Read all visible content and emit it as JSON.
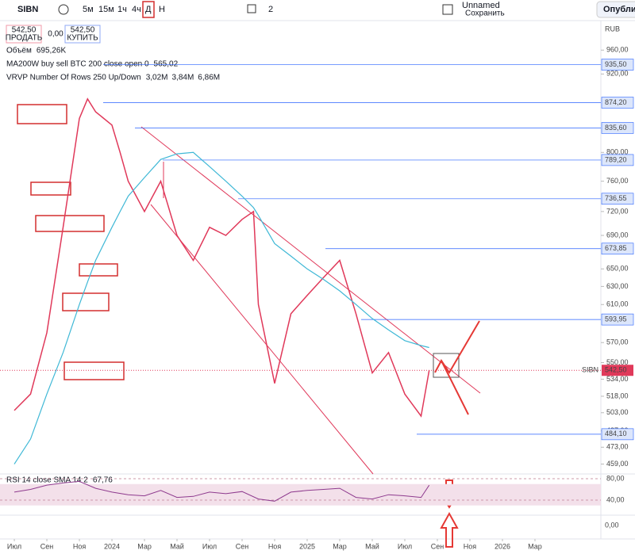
{
  "toolbar": {
    "symbol": "SIBN",
    "intervals": [
      "5м",
      "15м",
      "1ч",
      "4ч",
      "Д",
      "Н"
    ],
    "layout_count": "2",
    "layout_name": "Unnamed",
    "save": "Сохранить",
    "publish": "Опубликовать"
  },
  "trade": {
    "sell_price": "542,50",
    "sell": "ПРОДАТЬ",
    "spread": "0,00",
    "buy_price": "542,50",
    "buy": "КУПИТЬ"
  },
  "chart_data": [
    {
      "type": "line",
      "currency": "RUB",
      "log_scale": true,
      "indicators": [
        {
          "name": "Объём",
          "values": [
            "695,26K"
          ]
        },
        {
          "name": "MA200W buy sell BTC 200 close open 0",
          "values": [
            "565,02"
          ]
        },
        {
          "name": "VRVP Number Of Rows 250 Up/Down",
          "values": [
            "3,02M",
            "3,84M",
            "6,86M"
          ]
        }
      ],
      "x": [
        0,
        1,
        2,
        3,
        4,
        4.5,
        5,
        6,
        6.5,
        7,
        8,
        9,
        10,
        11,
        12,
        13,
        14,
        14.7,
        15,
        16,
        17,
        18,
        19,
        20,
        21,
        22,
        23,
        24,
        25,
        25.5
      ],
      "series": [
        {
          "color": "#e0395a",
          "values": [
            505,
            520,
            580,
            700,
            850,
            880,
            860,
            840,
            800,
            760,
            720,
            760,
            690,
            660,
            700,
            690,
            710,
            720,
            610,
            530,
            600,
            620,
            640,
            660,
            600,
            540,
            560,
            520,
            500,
            542.5
          ]
        },
        {
          "color": "#3fb8d6",
          "values": [
            459,
            480,
            520,
            560,
            610,
            635,
            660,
            700,
            720,
            740,
            765,
            790,
            798,
            800,
            780,
            760,
            740,
            725,
            715,
            680,
            665,
            650,
            638,
            625,
            610,
            595,
            583,
            572,
            567,
            565.02
          ]
        }
      ],
      "xlim": [
        -0.88,
        36.05
      ],
      "xticks": [
        {
          "value": 0,
          "label": "Июл"
        },
        {
          "value": 2,
          "label": "Сен"
        },
        {
          "value": 4,
          "label": "Ноя"
        },
        {
          "value": 6,
          "label": "2024"
        },
        {
          "value": 8,
          "label": "Мар"
        },
        {
          "value": 10,
          "label": "Май"
        },
        {
          "value": 12,
          "label": "Июл"
        },
        {
          "value": 14,
          "label": "Сен"
        },
        {
          "value": 16,
          "label": "Ноя"
        },
        {
          "value": 18,
          "label": "2025"
        },
        {
          "value": 20,
          "label": "Мар"
        },
        {
          "value": 22,
          "label": "Май"
        },
        {
          "value": 24,
          "label": "Июл"
        },
        {
          "value": 26,
          "label": "Сен"
        },
        {
          "value": 28,
          "label": "Ноя"
        },
        {
          "value": 30,
          "label": "2026"
        },
        {
          "value": 32,
          "label": "Мар"
        }
      ],
      "ylim": [
        451,
        1009
      ],
      "yticks": [
        {
          "value": 960,
          "label": "960,00"
        },
        {
          "value": 920,
          "label": "920,00"
        },
        {
          "value": 800,
          "label": "800,00"
        },
        {
          "value": 760,
          "label": "760,00"
        },
        {
          "value": 720,
          "label": "720,00"
        },
        {
          "value": 690,
          "label": "690,00"
        },
        {
          "value": 650,
          "label": "650,00"
        },
        {
          "value": 630,
          "label": "630,00"
        },
        {
          "value": 610,
          "label": "610,00"
        },
        {
          "value": 570,
          "label": "570,00"
        },
        {
          "value": 550,
          "label": "550,00"
        },
        {
          "value": 534,
          "label": "534,00"
        },
        {
          "value": 518,
          "label": "518,00"
        },
        {
          "value": 503,
          "label": "503,00"
        },
        {
          "value": 487,
          "label": "487,00"
        },
        {
          "value": 473,
          "label": "473,00"
        },
        {
          "value": 459,
          "label": "459,00"
        }
      ],
      "price_lines": {
        "values": [
          935.5,
          874.2,
          835.6,
          789.2,
          736.55,
          673.85,
          593.95,
          484.1
        ],
        "value_labels": [
          "935,50",
          "874,20",
          "835,60",
          "789,20",
          "736,55",
          "673,85",
          "593,95",
          "484,10"
        ]
      },
      "last_price": {
        "symbol": "SIBN",
        "value": 542.5,
        "label": "542,50"
      }
    },
    {
      "type": "line",
      "title": "RSI 14 close SMA 14 2",
      "last_label": "67,76",
      "x": [
        0,
        1,
        2,
        3,
        4,
        5,
        6,
        7,
        8,
        9,
        10,
        11,
        12,
        13,
        14,
        15,
        16,
        17,
        18,
        19,
        20,
        21,
        22,
        23,
        24,
        25,
        25.5
      ],
      "values": [
        55,
        60,
        68,
        72,
        75,
        62,
        55,
        50,
        48,
        58,
        45,
        47,
        55,
        52,
        56,
        42,
        38,
        55,
        58,
        60,
        62,
        45,
        42,
        50,
        48,
        45,
        67.76
      ],
      "color": "#8e3a8e",
      "band": [
        70,
        30
      ],
      "ylim": [
        14.8,
        85.9
      ],
      "yticks": [
        {
          "value": 80,
          "label": "80,00"
        },
        {
          "value": 40,
          "label": "40,00"
        }
      ]
    }
  ]
}
